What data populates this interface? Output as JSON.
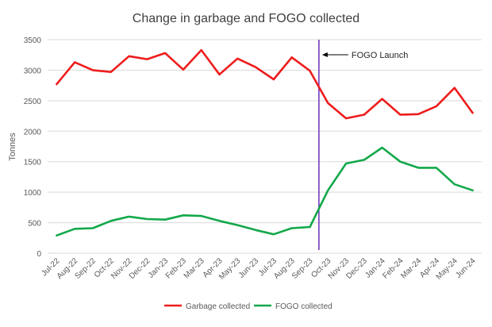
{
  "chart_data": {
    "type": "line",
    "title": "Change in garbage and FOGO collected",
    "ylabel": "Tonnes",
    "xlabel": "",
    "ylim": [
      0,
      3500
    ],
    "yticks": [
      0,
      500,
      1000,
      1500,
      2000,
      2500,
      3000,
      3500
    ],
    "grid": "horizontal",
    "legend_position": "bottom",
    "categories": [
      "Jul-22",
      "Aug-22",
      "Sep-22",
      "Oct-22",
      "Nov-22",
      "Dec-22",
      "Jan-23",
      "Feb-23",
      "Mar-23",
      "Apr-23",
      "May-23",
      "Jun-23",
      "Jul-23",
      "Aug-23",
      "Sep-23",
      "Oct-23",
      "Nov-23",
      "Dec-23",
      "Jan-24",
      "Feb-24",
      "Mar-24",
      "Apr-24",
      "May-24",
      "Jun-24"
    ],
    "series": [
      {
        "name": "Garbage collected",
        "color": "#ee1c1c",
        "values": [
          2770,
          3130,
          3000,
          2970,
          3230,
          3180,
          3280,
          3010,
          3330,
          2930,
          3190,
          3050,
          2850,
          3210,
          2990,
          2460,
          2210,
          2270,
          2530,
          2270,
          2280,
          2410,
          2710,
          2300
        ]
      },
      {
        "name": "FOGO collected",
        "color": "#12a84a",
        "values": [
          290,
          400,
          410,
          530,
          600,
          560,
          550,
          620,
          610,
          530,
          460,
          380,
          310,
          410,
          430,
          1030,
          1470,
          1530,
          1730,
          1500,
          1400,
          1400,
          1130,
          1030
        ]
      }
    ],
    "annotations": [
      {
        "text": "FOGO Launch",
        "at_between": [
          "Sep-23",
          "Oct-23"
        ],
        "line_color": "#6a2fb8"
      }
    ]
  }
}
